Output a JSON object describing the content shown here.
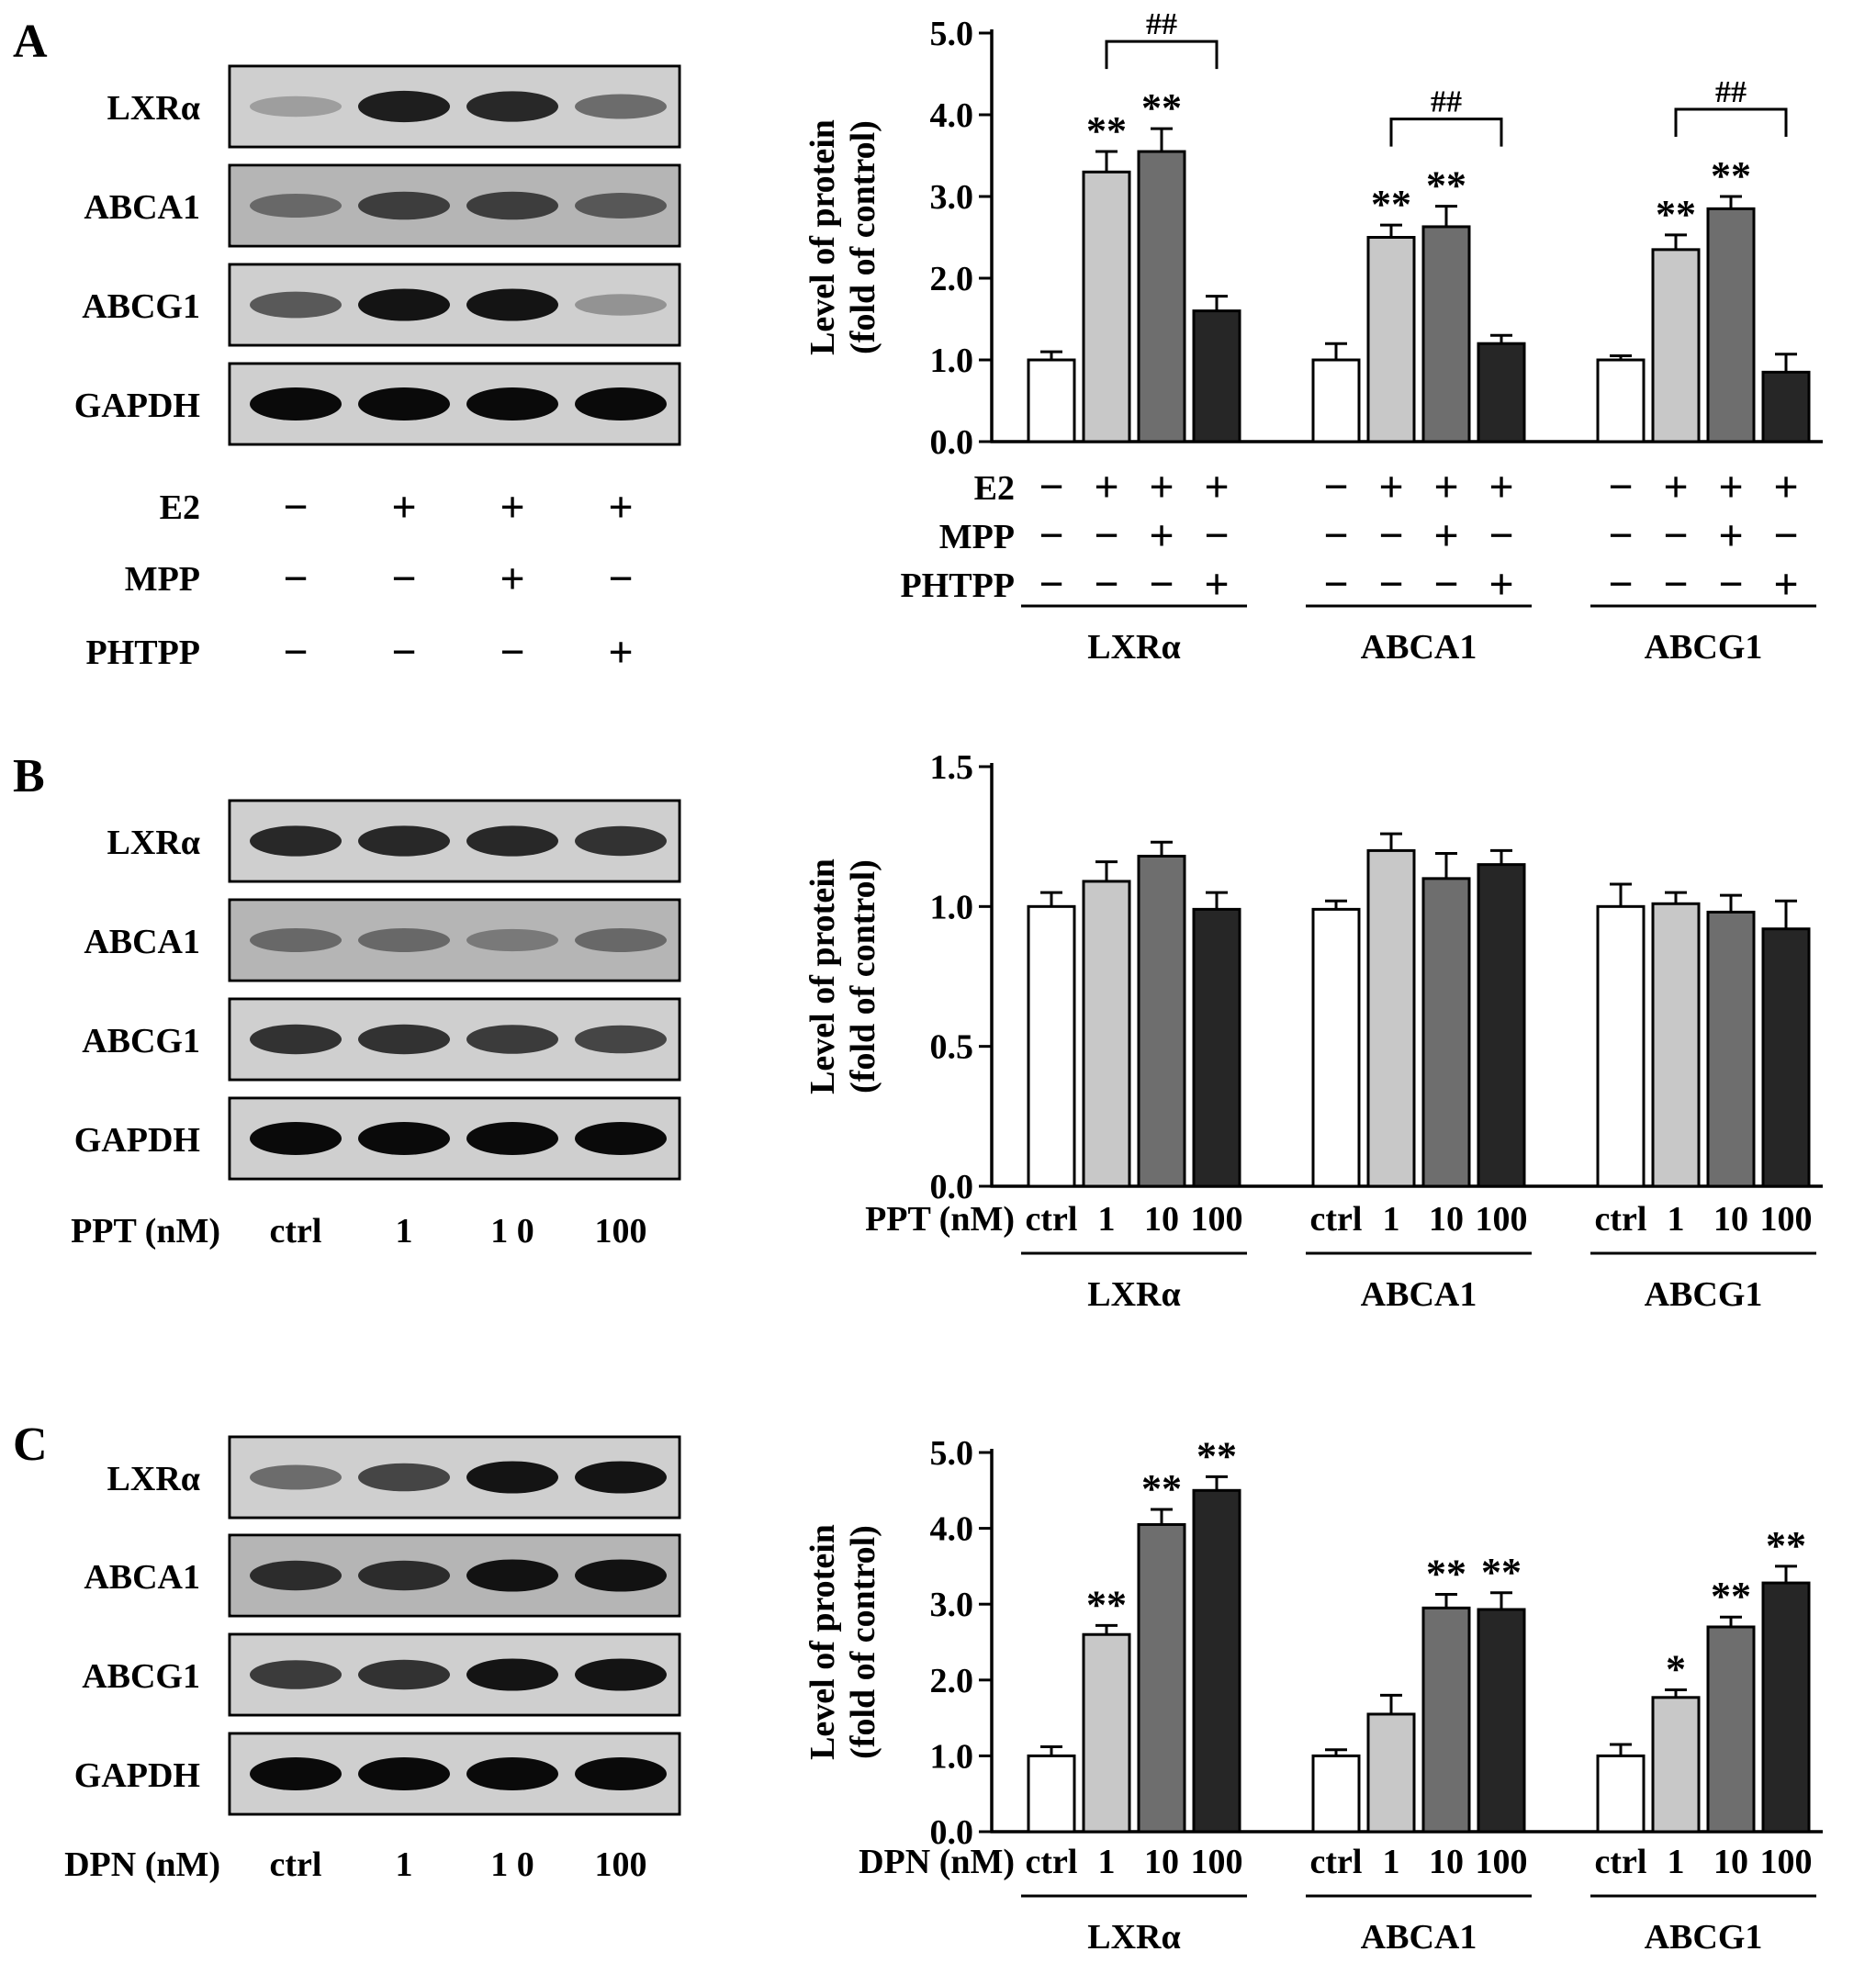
{
  "figure": {
    "panels": [
      {
        "letter": "A",
        "blot_labels": [
          "LXRα",
          "ABCA1",
          "ABCG1",
          "GAPDH"
        ],
        "treatment_rows": [
          {
            "name": "E2",
            "signs": [
              "−",
              "+",
              "+",
              "+"
            ]
          },
          {
            "name": "MPP",
            "signs": [
              "−",
              "−",
              "+",
              "−"
            ]
          },
          {
            "name": "PHTPP",
            "signs": [
              "−",
              "−",
              "−",
              "+"
            ]
          }
        ],
        "band_intensity": [
          [
            0.25,
            0.9,
            0.85,
            0.5
          ],
          [
            0.45,
            0.7,
            0.7,
            0.55
          ],
          [
            0.6,
            0.95,
            0.95,
            0.3
          ],
          [
            1,
            1,
            1,
            1
          ]
        ]
      },
      {
        "letter": "B",
        "blot_labels": [
          "LXRα",
          "ABCA1",
          "ABCG1",
          "GAPDH"
        ],
        "lane_label_title": "PPT (nM)",
        "lane_labels": [
          "ctrl",
          "1",
          "1 0",
          "100"
        ],
        "band_intensity": [
          [
            0.85,
            0.85,
            0.85,
            0.8
          ],
          [
            0.45,
            0.45,
            0.35,
            0.45
          ],
          [
            0.8,
            0.8,
            0.75,
            0.7
          ],
          [
            1,
            1,
            1,
            1
          ]
        ]
      },
      {
        "letter": "C",
        "blot_labels": [
          "LXRα",
          "ABCA1",
          "ABCG1",
          "GAPDH"
        ],
        "lane_label_title": "DPN (nM)",
        "lane_labels": [
          "ctrl",
          "1",
          "1 0",
          "100"
        ],
        "band_intensity": [
          [
            0.5,
            0.7,
            0.95,
            0.95
          ],
          [
            0.8,
            0.8,
            0.95,
            0.95
          ],
          [
            0.75,
            0.8,
            0.95,
            0.95
          ],
          [
            1,
            1,
            1,
            1
          ]
        ]
      }
    ]
  },
  "chart_data": [
    {
      "type": "bar",
      "panel": "A",
      "ylabel": [
        "Level of protein",
        "(fold of control)"
      ],
      "ylim": [
        0,
        5
      ],
      "yticks": [
        "0.0",
        "1.0",
        "2.0",
        "3.0",
        "4.0",
        "5.0"
      ],
      "group_colors": [
        "#ffffff",
        "#c8c8c8",
        "#6e6e6e",
        "#262626"
      ],
      "groups": [
        {
          "name": "LXRα",
          "values": [
            1.0,
            3.3,
            3.55,
            1.6
          ],
          "errors": [
            0.1,
            0.25,
            0.28,
            0.18
          ],
          "stars": [
            "",
            "**",
            "**",
            ""
          ],
          "bracket": "##"
        },
        {
          "name": "ABCA1",
          "values": [
            1.0,
            2.5,
            2.63,
            1.2
          ],
          "errors": [
            0.2,
            0.15,
            0.25,
            0.1
          ],
          "stars": [
            "",
            "**",
            "**",
            ""
          ],
          "bracket": "##"
        },
        {
          "name": "ABCG1",
          "values": [
            1.0,
            2.35,
            2.85,
            0.85
          ],
          "errors": [
            0.05,
            0.18,
            0.15,
            0.22
          ],
          "stars": [
            "",
            "**",
            "**",
            ""
          ],
          "bracket": "##"
        }
      ],
      "treatment_rows": [
        {
          "name": "E2",
          "signs": [
            "−",
            "+",
            "+",
            "+"
          ]
        },
        {
          "name": "MPP",
          "signs": [
            "−",
            "−",
            "+",
            "−"
          ]
        },
        {
          "name": "PHTPP",
          "signs": [
            "−",
            "−",
            "−",
            "+"
          ]
        }
      ]
    },
    {
      "type": "bar",
      "panel": "B",
      "ylabel": [
        "Level of protein",
        "(fold of control)"
      ],
      "ylim": [
        0,
        1.5
      ],
      "yticks": [
        "0.0",
        "0.5",
        "1.0",
        "1.5"
      ],
      "group_colors": [
        "#ffffff",
        "#c8c8c8",
        "#6e6e6e",
        "#262626"
      ],
      "x_title": "PPT (nM)",
      "categories": [
        "ctrl",
        "1",
        "10",
        "100"
      ],
      "groups": [
        {
          "name": "LXRα",
          "values": [
            1.0,
            1.09,
            1.18,
            0.99
          ],
          "errors": [
            0.05,
            0.07,
            0.05,
            0.06
          ],
          "stars": [
            "",
            "",
            "",
            ""
          ]
        },
        {
          "name": "ABCA1",
          "values": [
            0.99,
            1.2,
            1.1,
            1.15
          ],
          "errors": [
            0.03,
            0.06,
            0.09,
            0.05
          ],
          "stars": [
            "",
            "",
            "",
            ""
          ]
        },
        {
          "name": "ABCG1",
          "values": [
            1.0,
            1.01,
            0.98,
            0.92
          ],
          "errors": [
            0.08,
            0.04,
            0.06,
            0.1
          ],
          "stars": [
            "",
            "",
            "",
            ""
          ]
        }
      ]
    },
    {
      "type": "bar",
      "panel": "C",
      "ylabel": [
        "Level of protein",
        "(fold of control)"
      ],
      "ylim": [
        0,
        5
      ],
      "yticks": [
        "0.0",
        "1.0",
        "2.0",
        "3.0",
        "4.0",
        "5.0"
      ],
      "group_colors": [
        "#ffffff",
        "#c8c8c8",
        "#6e6e6e",
        "#262626"
      ],
      "x_title": "DPN (nM)",
      "categories": [
        "ctrl",
        "1",
        "10",
        "100"
      ],
      "groups": [
        {
          "name": "LXRα",
          "values": [
            1.0,
            2.6,
            4.05,
            4.5
          ],
          "errors": [
            0.12,
            0.12,
            0.2,
            0.18
          ],
          "stars": [
            "",
            "**",
            "**",
            "**"
          ]
        },
        {
          "name": "ABCA1",
          "values": [
            1.0,
            1.55,
            2.95,
            2.93
          ],
          "errors": [
            0.08,
            0.25,
            0.18,
            0.22
          ],
          "stars": [
            "",
            "",
            "**",
            "**"
          ]
        },
        {
          "name": "ABCG1",
          "values": [
            1.0,
            1.77,
            2.7,
            3.28
          ],
          "errors": [
            0.15,
            0.1,
            0.13,
            0.22
          ],
          "stars": [
            "",
            "*",
            "**",
            "**"
          ]
        }
      ]
    }
  ]
}
